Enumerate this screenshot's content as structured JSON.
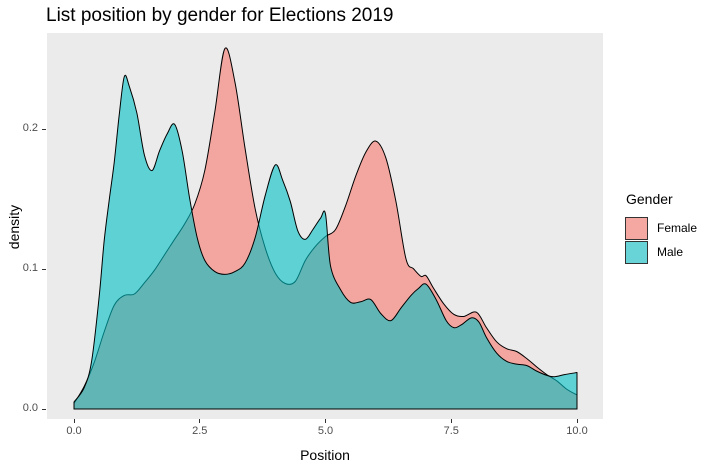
{
  "title": "List position by gender for Elections 2019",
  "x_axis": {
    "label": "Position",
    "ticks": [
      {
        "value": 0,
        "label": "0.0"
      },
      {
        "value": 2.5,
        "label": "2.5"
      },
      {
        "value": 5,
        "label": "5.0"
      },
      {
        "value": 7.5,
        "label": "7.5"
      },
      {
        "value": 10,
        "label": "10.0"
      }
    ]
  },
  "y_axis": {
    "label": "density",
    "ticks": [
      {
        "value": 0,
        "label": "0.0"
      },
      {
        "value": 0.1,
        "label": "0.1"
      },
      {
        "value": 0.2,
        "label": "0.2"
      }
    ]
  },
  "legend": {
    "title": "Gender",
    "items": [
      {
        "label": "Female",
        "swatch_color": "#F5A8A2"
      },
      {
        "label": "Male",
        "swatch_color": "#68D4D7"
      }
    ]
  },
  "colors": {
    "panel_background": "#EBEBEB",
    "female_fill": "#F8766D",
    "male_fill": "#00BFC4",
    "fill_opacity": 0.6,
    "outline": "#000000",
    "tick_text": "#4d4d4d"
  },
  "chart_data": {
    "type": "area",
    "title": "List position by gender for Elections 2019",
    "xlabel": "Position",
    "ylabel": "density",
    "xlim": [
      -0.54,
      10.52
    ],
    "ylim": [
      -0.007,
      0.2685
    ],
    "grid": false,
    "legend_position": "right",
    "series": [
      {
        "name": "Female",
        "fill": "#F8766D",
        "points": [
          [
            0.0,
            0.004
          ],
          [
            0.2,
            0.016
          ],
          [
            0.4,
            0.033
          ],
          [
            0.6,
            0.055
          ],
          [
            0.8,
            0.074
          ],
          [
            1.0,
            0.081
          ],
          [
            1.2,
            0.082
          ],
          [
            1.4,
            0.09
          ],
          [
            1.6,
            0.099
          ],
          [
            1.8,
            0.11
          ],
          [
            2.0,
            0.121
          ],
          [
            2.2,
            0.132
          ],
          [
            2.4,
            0.146
          ],
          [
            2.6,
            0.17
          ],
          [
            2.8,
            0.212
          ],
          [
            3.0,
            0.257
          ],
          [
            3.2,
            0.233
          ],
          [
            3.4,
            0.186
          ],
          [
            3.6,
            0.143
          ],
          [
            3.8,
            0.115
          ],
          [
            4.0,
            0.097
          ],
          [
            4.2,
            0.0895
          ],
          [
            4.4,
            0.091
          ],
          [
            4.6,
            0.106
          ],
          [
            4.8,
            0.116
          ],
          [
            5.0,
            0.123
          ],
          [
            5.2,
            0.128
          ],
          [
            5.4,
            0.145
          ],
          [
            5.6,
            0.166
          ],
          [
            5.8,
            0.183
          ],
          [
            6.0,
            0.191
          ],
          [
            6.2,
            0.179
          ],
          [
            6.4,
            0.148
          ],
          [
            6.6,
            0.107
          ],
          [
            6.75,
            0.1
          ],
          [
            6.9,
            0.0945
          ],
          [
            7.0,
            0.095
          ],
          [
            7.15,
            0.086
          ],
          [
            7.35,
            0.075
          ],
          [
            7.55,
            0.0675
          ],
          [
            7.75,
            0.066
          ],
          [
            8.0,
            0.069
          ],
          [
            8.2,
            0.058
          ],
          [
            8.4,
            0.048
          ],
          [
            8.6,
            0.043
          ],
          [
            8.8,
            0.041
          ],
          [
            9.0,
            0.036
          ],
          [
            9.2,
            0.03
          ],
          [
            9.4,
            0.0245
          ],
          [
            9.6,
            0.02
          ],
          [
            9.8,
            0.014
          ],
          [
            10.0,
            0.01
          ]
        ]
      },
      {
        "name": "Male",
        "fill": "#00BFC4",
        "points": [
          [
            0.0,
            0.005
          ],
          [
            0.2,
            0.015
          ],
          [
            0.35,
            0.034
          ],
          [
            0.5,
            0.08
          ],
          [
            0.6,
            0.12
          ],
          [
            0.7,
            0.149
          ],
          [
            0.8,
            0.176
          ],
          [
            0.9,
            0.21
          ],
          [
            1.0,
            0.237
          ],
          [
            1.1,
            0.23
          ],
          [
            1.25,
            0.211
          ],
          [
            1.4,
            0.181
          ],
          [
            1.55,
            0.17
          ],
          [
            1.7,
            0.184
          ],
          [
            1.85,
            0.196
          ],
          [
            2.0,
            0.203
          ],
          [
            2.15,
            0.184
          ],
          [
            2.3,
            0.15
          ],
          [
            2.45,
            0.122
          ],
          [
            2.6,
            0.106
          ],
          [
            2.8,
            0.098
          ],
          [
            3.0,
            0.096
          ],
          [
            3.2,
            0.098
          ],
          [
            3.4,
            0.104
          ],
          [
            3.6,
            0.122
          ],
          [
            3.8,
            0.152
          ],
          [
            4.0,
            0.174
          ],
          [
            4.15,
            0.163
          ],
          [
            4.3,
            0.148
          ],
          [
            4.45,
            0.127
          ],
          [
            4.6,
            0.121
          ],
          [
            4.75,
            0.128
          ],
          [
            4.9,
            0.136
          ],
          [
            5.0,
            0.139
          ],
          [
            5.1,
            0.102
          ],
          [
            5.3,
            0.085
          ],
          [
            5.5,
            0.076
          ],
          [
            5.7,
            0.0765
          ],
          [
            5.9,
            0.078
          ],
          [
            6.1,
            0.068
          ],
          [
            6.3,
            0.063
          ],
          [
            6.5,
            0.072
          ],
          [
            6.7,
            0.081
          ],
          [
            6.85,
            0.086
          ],
          [
            7.0,
            0.089
          ],
          [
            7.2,
            0.078
          ],
          [
            7.4,
            0.063
          ],
          [
            7.55,
            0.058
          ],
          [
            7.7,
            0.06
          ],
          [
            7.9,
            0.065
          ],
          [
            8.05,
            0.062
          ],
          [
            8.2,
            0.051
          ],
          [
            8.4,
            0.04
          ],
          [
            8.6,
            0.034
          ],
          [
            8.8,
            0.032
          ],
          [
            9.0,
            0.031
          ],
          [
            9.2,
            0.027
          ],
          [
            9.4,
            0.024
          ],
          [
            9.55,
            0.023
          ],
          [
            9.75,
            0.0245
          ],
          [
            10.0,
            0.026
          ]
        ]
      }
    ]
  }
}
